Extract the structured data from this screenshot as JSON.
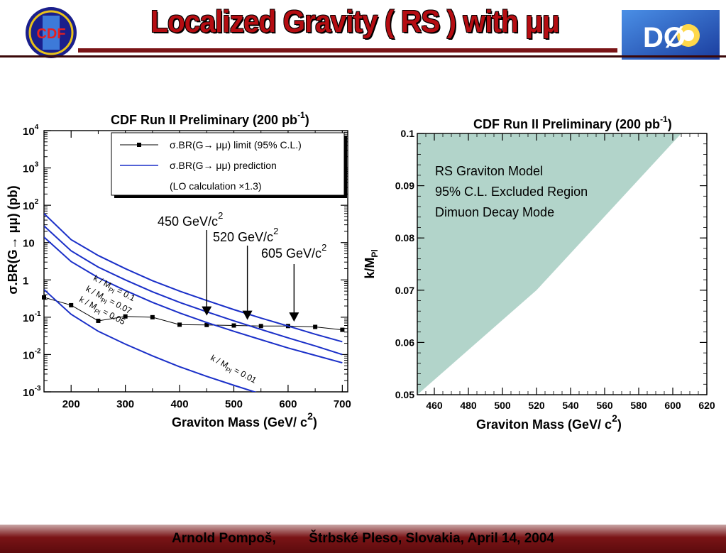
{
  "slide": {
    "title": "Localized Gravity ( RS ) with μμ",
    "footer_author": "Arnold Pompoš,",
    "footer_venue": "Štrbské Pleso, Slovakia, April 14, 2004",
    "logos": {
      "left": "CDF",
      "right": "DØ"
    },
    "colors": {
      "title": "#b50d12",
      "bar": "#7a1416",
      "fill": "#b2d4ca",
      "curve": "#1a2fc8"
    }
  },
  "chart_data": [
    {
      "type": "line",
      "title": "CDF Run II Preliminary (200 pb",
      "title_sup": "-1",
      "title_close": ")",
      "xlabel": "Graviton Mass (GeV/ c",
      "xlabel_sup": "2",
      "xlabel_close": ")",
      "ylabel": "σ.BR(G→ μμ) (pb)",
      "xlim": [
        150,
        710
      ],
      "ylim": [
        0.001,
        10000
      ],
      "yscale": "log",
      "x_ticks": [
        "200",
        "300",
        "400",
        "500",
        "600",
        "700"
      ],
      "y_ticks": [
        {
          "base": "10",
          "exp": "-3",
          "v": 0.001
        },
        {
          "base": "10",
          "exp": "-2",
          "v": 0.01
        },
        {
          "base": "10",
          "exp": "-1",
          "v": 0.1
        },
        {
          "base": "1",
          "exp": "",
          "v": 1
        },
        {
          "base": "10",
          "exp": "",
          "v": 10
        },
        {
          "base": "10",
          "exp": "2",
          "v": 100
        },
        {
          "base": "10",
          "exp": "3",
          "v": 1000
        },
        {
          "base": "10",
          "exp": "4",
          "v": 10000
        }
      ],
      "legend": {
        "position": "top",
        "entries": [
          "σ.BR(G→ μμ) limit (95% C.L.)",
          "σ.BR(G→ μμ) prediction",
          "(LO calculation ×1.3)"
        ]
      },
      "series": [
        {
          "name": "σ.BR(G→ μμ) limit (95% C.L.)",
          "style": "black-markers",
          "x": [
            150,
            200,
            250,
            300,
            350,
            400,
            450,
            500,
            550,
            600,
            650,
            700
          ],
          "y": [
            0.34,
            0.21,
            0.08,
            0.105,
            0.1,
            0.063,
            0.062,
            0.06,
            0.058,
            0.058,
            0.055,
            0.046
          ]
        },
        {
          "name": "k / M_Pl = 0.1",
          "style": "blue",
          "x": [
            150,
            200,
            250,
            300,
            350,
            400,
            450,
            500,
            550,
            600,
            650,
            700
          ],
          "y": [
            60,
            12,
            4.5,
            2,
            0.95,
            0.5,
            0.28,
            0.16,
            0.095,
            0.058,
            0.035,
            0.022
          ]
        },
        {
          "name": "k / M_Pl = 0.07",
          "style": "blue",
          "x": [
            150,
            200,
            250,
            300,
            350,
            400,
            450,
            500,
            550,
            600,
            650,
            700
          ],
          "y": [
            28,
            6,
            2.2,
            1,
            0.48,
            0.25,
            0.14,
            0.08,
            0.047,
            0.028,
            0.017,
            0.01
          ]
        },
        {
          "name": "k / M_Pl = 0.05",
          "style": "blue",
          "x": [
            150,
            200,
            250,
            300,
            350,
            400,
            450,
            500,
            550,
            600,
            650,
            700
          ],
          "y": [
            14,
            3.1,
            1.15,
            0.52,
            0.25,
            0.13,
            0.072,
            0.042,
            0.025,
            0.015,
            0.0095,
            0.006
          ]
        },
        {
          "name": "k / M_Pl = 0.01",
          "style": "blue",
          "x": [
            150,
            200,
            250,
            300,
            350,
            400,
            450,
            500,
            550
          ],
          "y": [
            0.55,
            0.12,
            0.042,
            0.019,
            0.0092,
            0.0047,
            0.0026,
            0.0015,
            0.00088
          ]
        }
      ],
      "curve_labels": [
        {
          "text": "k / M",
          "sub": "Pl",
          "tail": " = 0.1",
          "x": 240,
          "y": 1.0
        },
        {
          "text": "k / M",
          "sub": "Pl",
          "tail": " = 0.07",
          "x": 226,
          "y": 0.52
        },
        {
          "text": "k / M",
          "sub": "Pl",
          "tail": " = 0.05",
          "x": 214,
          "y": 0.27
        },
        {
          "text": "k / M",
          "sub": "Pl",
          "tail": " = 0.01",
          "x": 456,
          "y": 0.0073
        }
      ],
      "annotations": [
        {
          "text": "450 GeV/c",
          "sup": "2",
          "x": 450
        },
        {
          "text": "520 GeV/c",
          "sup": "2",
          "x": 525
        },
        {
          "text": "605 GeV/c",
          "sup": "2",
          "x": 611
        }
      ]
    },
    {
      "type": "area",
      "title": "CDF Run II Preliminary (200 pb",
      "title_sup": "-1",
      "title_close": ")",
      "xlabel": "Graviton Mass (GeV/ c",
      "xlabel_sup": "2",
      "xlabel_close": ")",
      "ylabel": "k/M",
      "ylabel_sub": "Pl",
      "xlim": [
        450,
        620
      ],
      "ylim": [
        0.05,
        0.1
      ],
      "x_ticks": [
        "460",
        "480",
        "500",
        "520",
        "540",
        "560",
        "580",
        "600",
        "620"
      ],
      "y_ticks": [
        "0.05",
        "0.06",
        "0.07",
        "0.08",
        "0.09",
        "0.1"
      ],
      "region_label": [
        "RS Graviton Model",
        "95% C.L. Excluded Region",
        "Dimuon Decay Mode"
      ],
      "boundary": {
        "x": [
          450,
          520,
          605
        ],
        "y": [
          0.05,
          0.07,
          0.1
        ]
      }
    }
  ]
}
